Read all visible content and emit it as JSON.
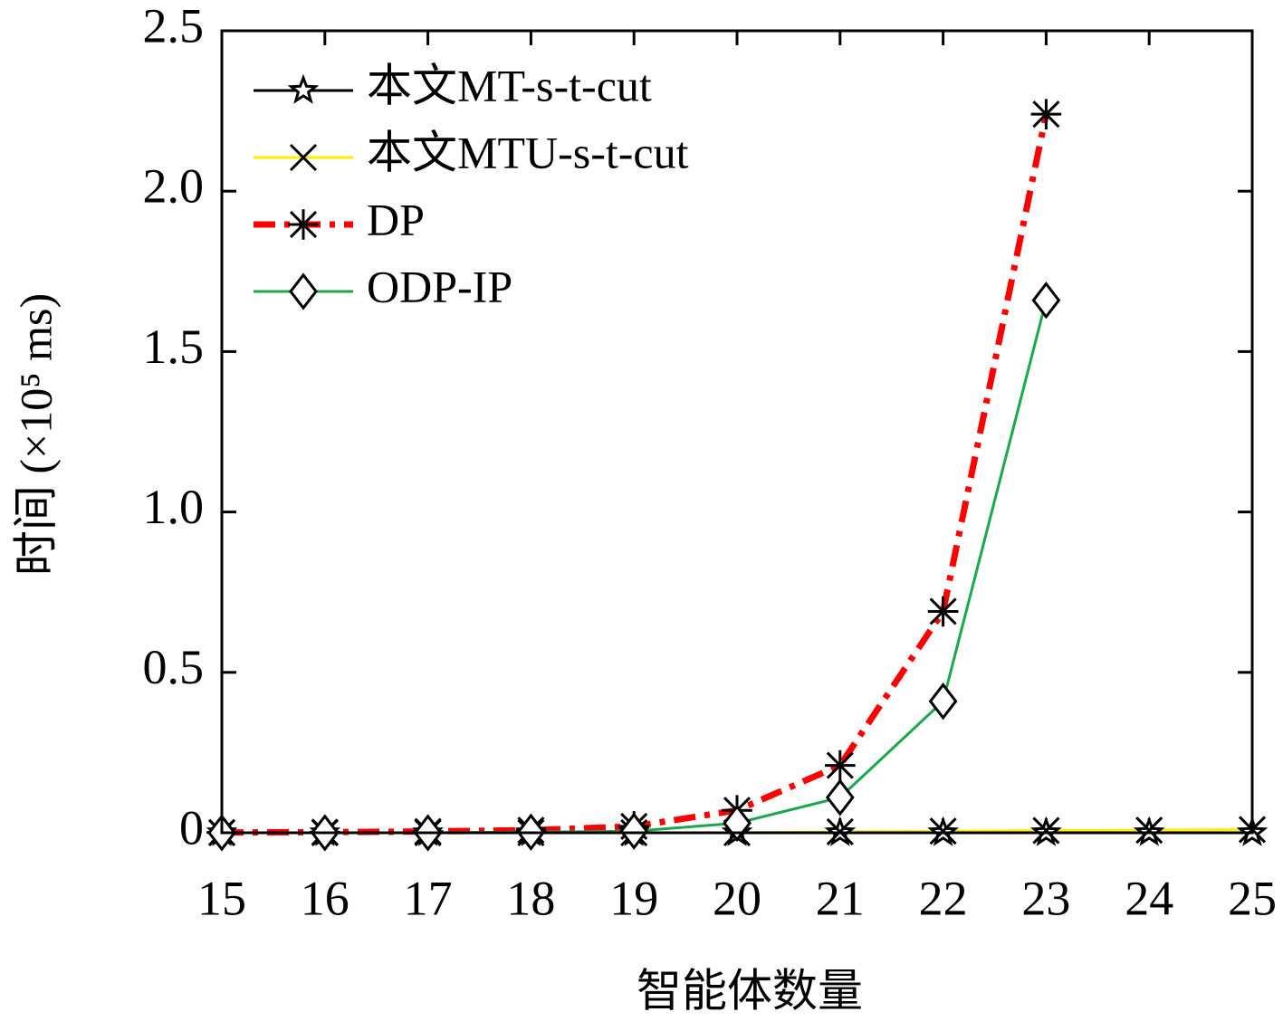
{
  "chart_data": {
    "type": "line",
    "xlabel": "智能体数量",
    "ylabel": "时间 (×10⁵ ms)",
    "x": [
      15,
      16,
      17,
      18,
      19,
      20,
      21,
      22,
      23,
      24,
      25
    ],
    "xlim": [
      15,
      25
    ],
    "xticks": [
      15,
      16,
      17,
      18,
      19,
      20,
      21,
      22,
      23,
      24,
      25
    ],
    "ylim": [
      0,
      2.5
    ],
    "yticks": [
      0,
      0.5,
      {
        "value": 1,
        "label": "1.0"
      },
      1.5,
      {
        "value": 2,
        "label": "2.0"
      },
      2.5
    ],
    "legend": "upper left",
    "series": [
      {
        "name": "本文MT-s-t-cut",
        "color": "#000000",
        "marker": "star",
        "linestyle": "solid",
        "values": [
          0,
          0,
          0,
          0,
          0,
          0,
          0,
          0,
          0,
          0,
          0
        ]
      },
      {
        "name": "本文MTU-s-t-cut",
        "color": "#ffee00",
        "marker": "x",
        "linestyle": "solid",
        "values": [
          0,
          0,
          0,
          0,
          0,
          0,
          0.003,
          0.005,
          0.007,
          0.008,
          0.01
        ]
      },
      {
        "name": "DP",
        "color": "#ff0000",
        "marker": "asterisk",
        "linestyle": "dashdot",
        "values": [
          0.001,
          0.002,
          0.004,
          0.008,
          0.02,
          0.07,
          0.21,
          0.69,
          2.24,
          null,
          null
        ]
      },
      {
        "name": "ODP-IP",
        "color": "#1aa84a",
        "marker": "diamond",
        "linestyle": "solid",
        "values": [
          0,
          0,
          0,
          0.002,
          0.005,
          0.03,
          0.11,
          0.41,
          1.66,
          null,
          null
        ]
      }
    ]
  }
}
